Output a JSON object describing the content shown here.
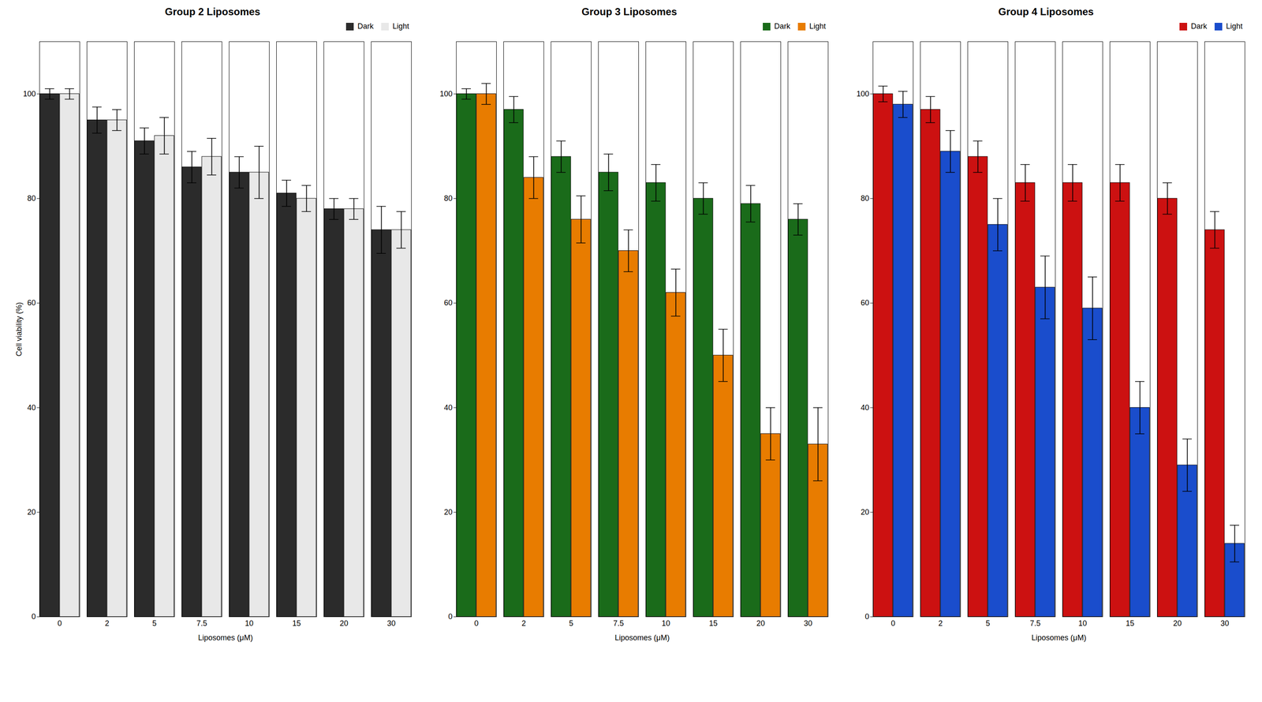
{
  "chart_data": [
    {
      "type": "bar",
      "title": "Group 2 Liposomes",
      "xlabel": "Liposomes (μM)",
      "ylabel": "Cell viability (%)",
      "categories": [
        "0",
        "2",
        "5",
        "7.5",
        "10",
        "15",
        "20",
        "30"
      ],
      "series": [
        {
          "name": "Dark",
          "color": "#2b2b2b",
          "values": [
            100,
            95,
            91,
            86,
            85,
            81,
            78,
            74
          ],
          "errors": [
            1.0,
            2.5,
            2.5,
            3.0,
            3.0,
            2.5,
            2.0,
            4.5
          ]
        },
        {
          "name": "Light",
          "color": "#e8e8e8",
          "values": [
            100,
            95,
            92,
            88,
            85,
            80,
            78,
            74
          ],
          "errors": [
            1.0,
            2.0,
            3.5,
            3.5,
            5.0,
            2.5,
            2.0,
            3.5
          ]
        }
      ],
      "ylim": [
        0,
        110
      ],
      "yticks": [
        0,
        20,
        40,
        60,
        80,
        100
      ],
      "grid": false,
      "legend": "upper right"
    },
    {
      "type": "bar",
      "title": "Group 3 Liposomes",
      "xlabel": "Liposomes (μM)",
      "categories": [
        "0",
        "2",
        "5",
        "7.5",
        "10",
        "15",
        "20",
        "30"
      ],
      "series": [
        {
          "name": "Dark",
          "color": "#1a6b1a",
          "values": [
            100,
            97,
            88,
            85,
            83,
            80,
            79,
            76
          ],
          "errors": [
            1.0,
            2.5,
            3.0,
            3.5,
            3.5,
            3.0,
            3.5,
            3.0
          ]
        },
        {
          "name": "Light",
          "color": "#e87c00",
          "values": [
            100,
            84,
            76,
            70,
            62,
            50,
            35,
            33
          ],
          "errors": [
            2.0,
            4.0,
            4.5,
            4.0,
            4.5,
            5.0,
            5.0,
            7.0
          ]
        }
      ],
      "ylim": [
        0,
        110
      ],
      "yticks": [
        0,
        20,
        40,
        60,
        80,
        100
      ],
      "grid": false,
      "legend": "upper right"
    },
    {
      "type": "bar",
      "title": "Group 4 Liposomes",
      "xlabel": "Liposomes (μM)",
      "categories": [
        "0",
        "2",
        "5",
        "7.5",
        "10",
        "15",
        "20",
        "30"
      ],
      "series": [
        {
          "name": "Dark",
          "color": "#cc1111",
          "values": [
            100,
            97,
            88,
            83,
            83,
            83,
            80,
            74
          ],
          "errors": [
            1.5,
            2.5,
            3.0,
            3.5,
            3.5,
            3.5,
            3.0,
            3.5
          ]
        },
        {
          "name": "Light",
          "color": "#1a4dcc",
          "values": [
            98,
            89,
            75,
            63,
            59,
            40,
            29,
            14
          ],
          "errors": [
            2.5,
            4.0,
            5.0,
            6.0,
            6.0,
            5.0,
            5.0,
            3.5
          ]
        }
      ],
      "ylim": [
        0,
        110
      ],
      "yticks": [
        0,
        20,
        40,
        60,
        80,
        100
      ],
      "grid": false,
      "legend": "upper right"
    }
  ]
}
